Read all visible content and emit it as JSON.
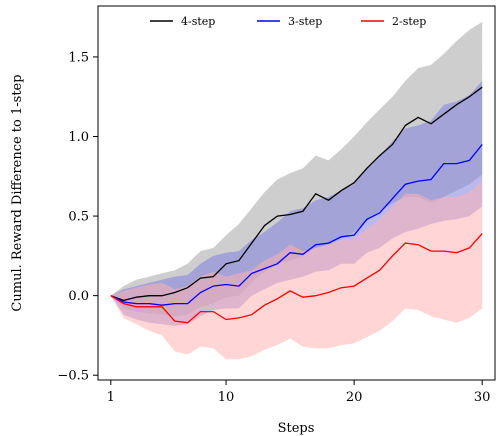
{
  "chart_data": {
    "type": "line",
    "title": "",
    "xlabel": "Steps",
    "ylabel": "Cumul. Reward Difference to 1-step",
    "xlim": [
      0,
      31
    ],
    "ylim": [
      -0.53,
      1.82
    ],
    "xticks": [
      1,
      10,
      20,
      30
    ],
    "yticks": [
      -0.5,
      0.0,
      0.5,
      1.0,
      1.5
    ],
    "ytick_labels": [
      "−0.5",
      "0.0",
      "0.5",
      "1.0",
      "1.5"
    ],
    "legend_position": "top-center",
    "grid": false,
    "x": [
      1,
      2,
      3,
      4,
      5,
      6,
      7,
      8,
      9,
      10,
      11,
      12,
      13,
      14,
      15,
      16,
      17,
      18,
      19,
      20,
      21,
      22,
      23,
      24,
      25,
      26,
      27,
      28,
      29,
      30
    ],
    "series": [
      {
        "name": "4-step",
        "color": "#000000",
        "band_color": "#bdbdbd",
        "values": [
          0.0,
          -0.03,
          -0.01,
          0.0,
          0.0,
          0.02,
          0.05,
          0.11,
          0.12,
          0.2,
          0.22,
          0.33,
          0.44,
          0.5,
          0.51,
          0.53,
          0.64,
          0.6,
          0.66,
          0.71,
          0.8,
          0.88,
          0.95,
          1.07,
          1.12,
          1.08,
          1.14,
          1.2,
          1.25,
          1.31
        ],
        "upper": [
          0.0,
          0.06,
          0.1,
          0.12,
          0.14,
          0.16,
          0.2,
          0.28,
          0.3,
          0.38,
          0.45,
          0.55,
          0.65,
          0.73,
          0.77,
          0.8,
          0.88,
          0.85,
          0.92,
          1.0,
          1.09,
          1.17,
          1.25,
          1.35,
          1.43,
          1.45,
          1.52,
          1.6,
          1.67,
          1.72
        ],
        "lower": [
          0.0,
          -0.08,
          -0.1,
          -0.11,
          -0.12,
          -0.13,
          -0.12,
          -0.07,
          -0.05,
          -0.01,
          0.0,
          0.08,
          0.15,
          0.2,
          0.22,
          0.25,
          0.3,
          0.32,
          0.36,
          0.4,
          0.47,
          0.53,
          0.58,
          0.62,
          0.62,
          0.58,
          0.62,
          0.66,
          0.7,
          0.76
        ]
      },
      {
        "name": "3-step",
        "color": "#0000ff",
        "band_color": "#8080e0",
        "values": [
          0.0,
          -0.04,
          -0.05,
          -0.05,
          -0.06,
          -0.05,
          -0.05,
          0.02,
          0.06,
          0.07,
          0.06,
          0.14,
          0.17,
          0.2,
          0.27,
          0.26,
          0.32,
          0.33,
          0.37,
          0.38,
          0.48,
          0.52,
          0.61,
          0.7,
          0.72,
          0.73,
          0.83,
          0.83,
          0.85,
          0.95
        ],
        "upper": [
          0.0,
          0.04,
          0.06,
          0.08,
          0.1,
          0.12,
          0.13,
          0.2,
          0.25,
          0.27,
          0.28,
          0.35,
          0.4,
          0.46,
          0.53,
          0.55,
          0.6,
          0.62,
          0.66,
          0.7,
          0.8,
          0.88,
          0.97,
          1.05,
          1.07,
          1.1,
          1.2,
          1.22,
          1.26,
          1.35
        ],
        "lower": [
          0.0,
          -0.12,
          -0.15,
          -0.17,
          -0.18,
          -0.19,
          -0.18,
          -0.13,
          -0.09,
          -0.08,
          -0.08,
          0.0,
          0.04,
          0.08,
          0.1,
          0.12,
          0.15,
          0.16,
          0.2,
          0.2,
          0.27,
          0.3,
          0.36,
          0.4,
          0.42,
          0.45,
          0.47,
          0.48,
          0.5,
          0.56
        ]
      },
      {
        "name": "2-step",
        "color": "#ff0000",
        "band_color": "#ffb3b3",
        "values": [
          0.0,
          -0.05,
          -0.07,
          -0.07,
          -0.07,
          -0.16,
          -0.17,
          -0.1,
          -0.1,
          -0.15,
          -0.14,
          -0.12,
          -0.06,
          -0.02,
          0.03,
          -0.01,
          0.0,
          0.02,
          0.05,
          0.06,
          0.11,
          0.16,
          0.25,
          0.33,
          0.32,
          0.28,
          0.28,
          0.27,
          0.3,
          0.39
        ],
        "upper": [
          0.0,
          0.03,
          0.05,
          0.07,
          0.08,
          0.04,
          0.06,
          0.12,
          0.15,
          0.12,
          0.14,
          0.16,
          0.22,
          0.26,
          0.32,
          0.28,
          0.3,
          0.32,
          0.35,
          0.36,
          0.42,
          0.48,
          0.56,
          0.64,
          0.64,
          0.6,
          0.62,
          0.62,
          0.65,
          0.72
        ],
        "lower": [
          0.0,
          -0.14,
          -0.18,
          -0.22,
          -0.25,
          -0.35,
          -0.37,
          -0.32,
          -0.33,
          -0.4,
          -0.4,
          -0.38,
          -0.34,
          -0.31,
          -0.27,
          -0.32,
          -0.33,
          -0.33,
          -0.31,
          -0.3,
          -0.26,
          -0.22,
          -0.16,
          -0.08,
          -0.09,
          -0.13,
          -0.15,
          -0.17,
          -0.14,
          -0.08
        ]
      }
    ]
  }
}
